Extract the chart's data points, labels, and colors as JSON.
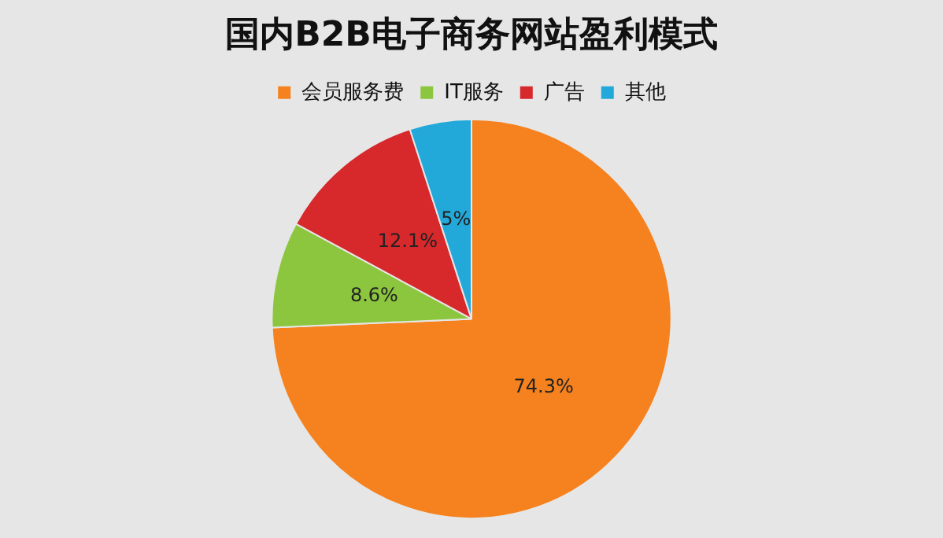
{
  "chart_data": {
    "type": "pie",
    "title": "国内B2B电子商务网站盈利模式",
    "categories": [
      "会员服务费",
      "IT服务",
      "广告",
      "其他"
    ],
    "values": [
      74.3,
      8.6,
      12.1,
      5
    ],
    "colors": [
      "#f5821f",
      "#8cc63e",
      "#d7282c",
      "#22a9d9"
    ],
    "value_labels": [
      "74.3%",
      "8.6%",
      "12.1%",
      "5%"
    ],
    "legend": "top"
  }
}
